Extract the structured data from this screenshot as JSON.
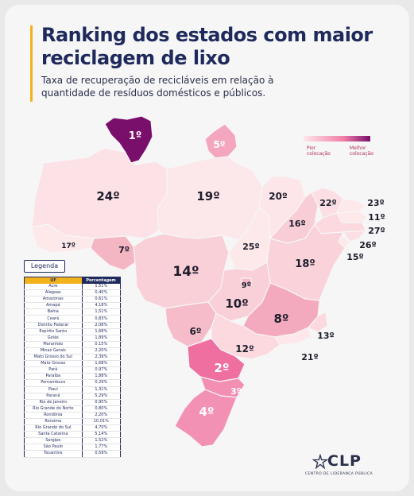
{
  "header": {
    "title": "Ranking dos estados com maior reciclagem de lixo",
    "subtitle": "Taxa de recuperação de recicláveis em relação à quantidade de resíduos domésticos e públicos."
  },
  "scale": {
    "low_label": "Pior colocação",
    "high_label": "Melhor colocação",
    "low_color": "#fde6ea",
    "high_color": "#7a0e6b"
  },
  "map_ranks": {
    "roraima": "1º",
    "santa_catarina": "2º",
    "rio_grande_do_sul_north": "3º",
    "rio_grande_do_sul": "4º",
    "amapa": "5º",
    "rondonia": "6º",
    "acre_text": "17º",
    "acre_rank": "7º",
    "goias": "8º",
    "distrito_federal": "9º",
    "goias_label": "10º",
    "pernambuco": "11º",
    "mato_grosso_do_sul": "12º",
    "espirito_santo": "13º",
    "mato_grosso": "14º",
    "alagoas": "15º",
    "paraiba_16": "16º",
    "bahia": "18º",
    "para": "19º",
    "maranhao": "20º",
    "rio_de_janeiro": "21º",
    "piaui_ceara": "22º",
    "rio_grande_do_norte": "23º",
    "amazonas": "24º",
    "tocantins": "25º",
    "sergipe": "26º",
    "paraiba": "27º"
  },
  "legend": {
    "title": "Legenda",
    "col_uf": "UF",
    "col_pct": "Porcentagem",
    "rows": [
      {
        "uf": "Acre",
        "pct": "1,51%"
      },
      {
        "uf": "Alagoas",
        "pct": "0,40%"
      },
      {
        "uf": "Amazonas",
        "pct": "0,61%"
      },
      {
        "uf": "Amapá",
        "pct": "4,18%"
      },
      {
        "uf": "Bahia",
        "pct": "1,51%"
      },
      {
        "uf": "Ceará",
        "pct": "0,83%"
      },
      {
        "uf": "Distrito Federal",
        "pct": "2,08%"
      },
      {
        "uf": "Espírito Santo",
        "pct": "1,68%"
      },
      {
        "uf": "Goiás",
        "pct": "1,89%"
      },
      {
        "uf": "Maranhão",
        "pct": "0,15%"
      },
      {
        "uf": "Minas Gerais",
        "pct": "2,20%"
      },
      {
        "uf": "Mato Grosso do Sul",
        "pct": "2,39%"
      },
      {
        "uf": "Mato Grosso",
        "pct": "1,68%"
      },
      {
        "uf": "Pará",
        "pct": "0,97%"
      },
      {
        "uf": "Paraíba",
        "pct": "1,88%"
      },
      {
        "uf": "Pernambuco",
        "pct": "0,29%"
      },
      {
        "uf": "Piauí",
        "pct": "1,31%"
      },
      {
        "uf": "Paraná",
        "pct": "5,29%"
      },
      {
        "uf": "Rio de Janeiro",
        "pct": "0,95%"
      },
      {
        "uf": "Rio Grande do Norte",
        "pct": "0,80%"
      },
      {
        "uf": "Rondônia",
        "pct": "2,20%"
      },
      {
        "uf": "Roraima",
        "pct": "10,01%"
      },
      {
        "uf": "Rio Grande do Sul",
        "pct": "4,70%"
      },
      {
        "uf": "Santa Catarina",
        "pct": "5,14%"
      },
      {
        "uf": "Sergipe",
        "pct": "1,52%"
      },
      {
        "uf": "São Paulo",
        "pct": "1,77%"
      },
      {
        "uf": "Tocantins",
        "pct": "0,59%"
      }
    ]
  },
  "brand": {
    "logo_text": "CLP",
    "logo_sub": "CENTRO DE LIDERANÇA PÚBLICA",
    "logo_icon": "clp-star-icon"
  }
}
